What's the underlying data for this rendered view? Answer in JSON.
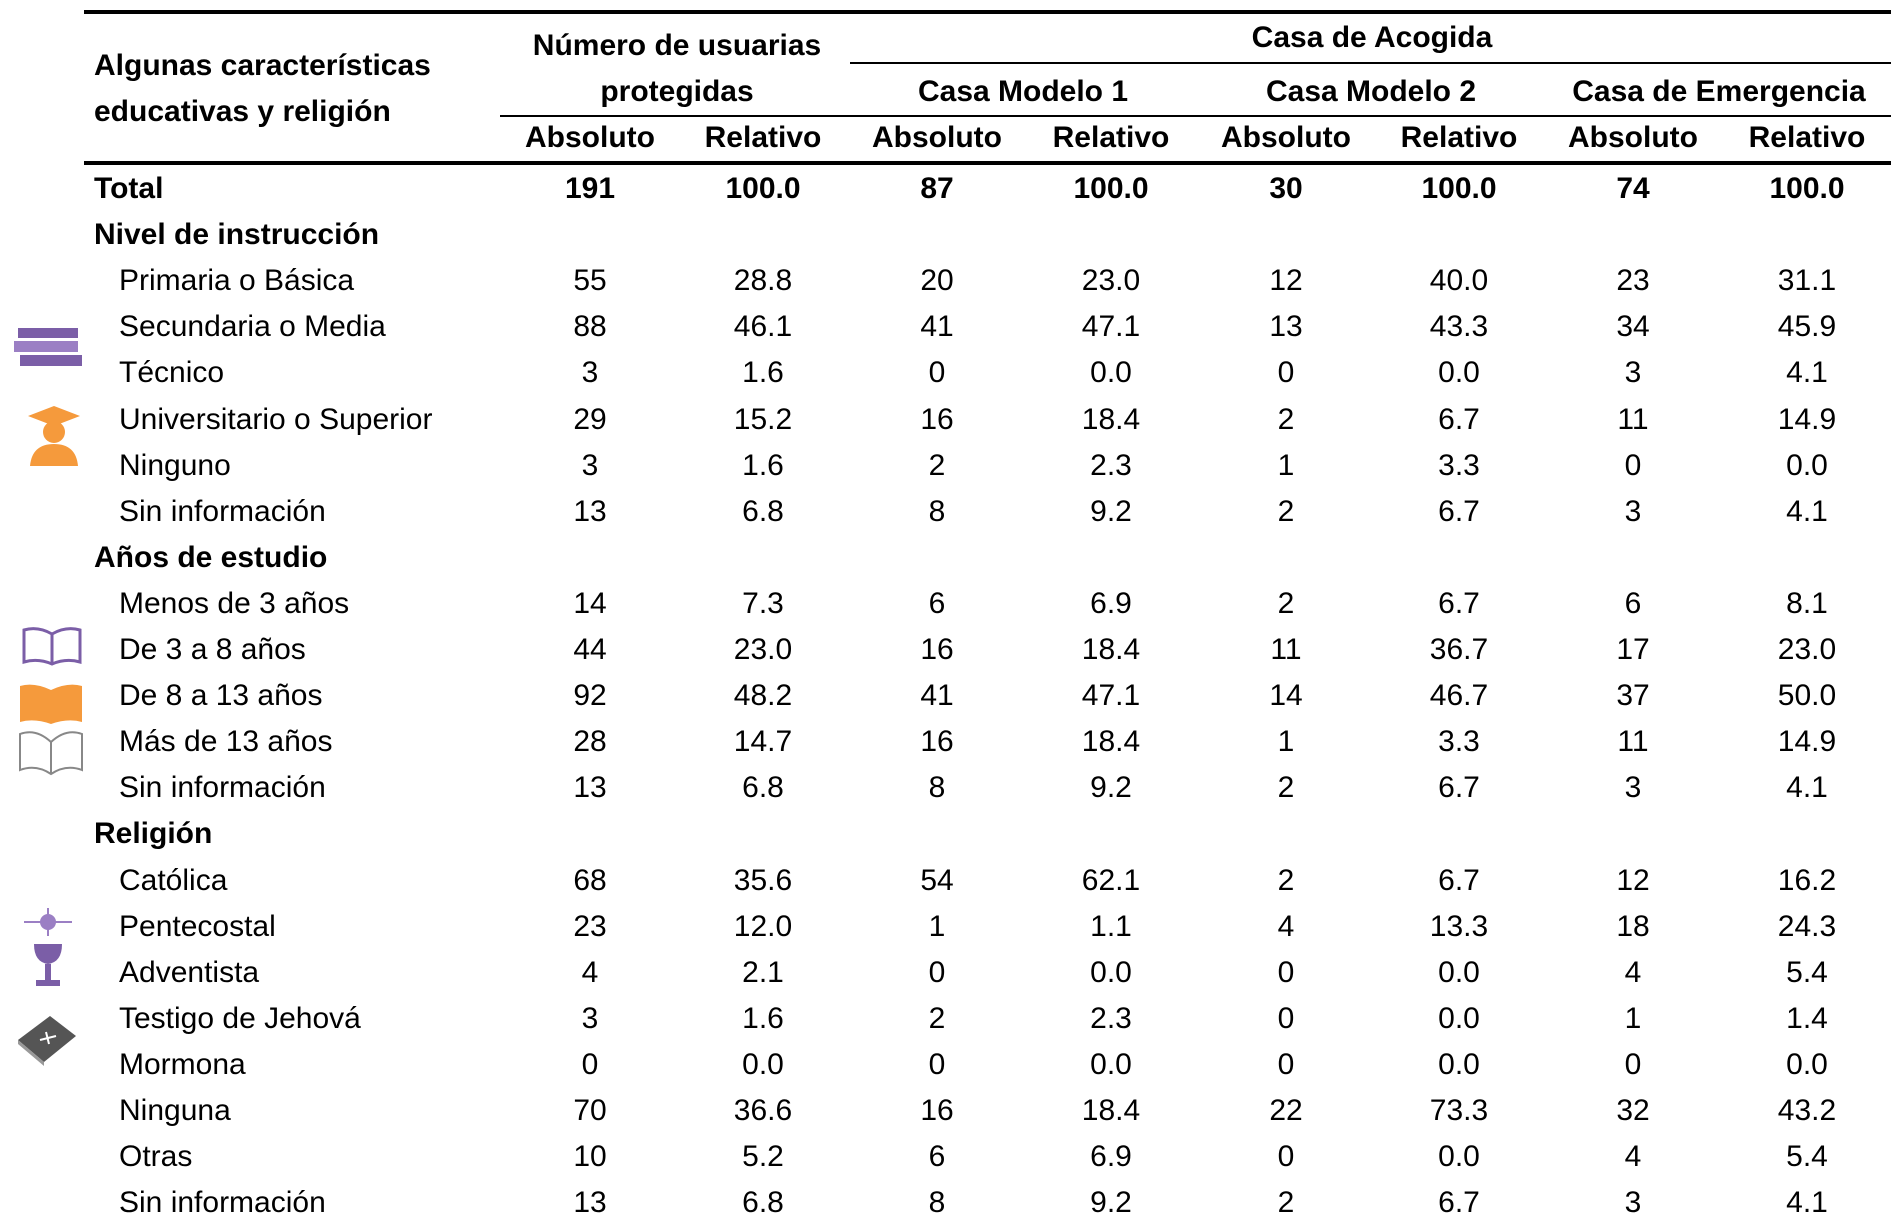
{
  "header": {
    "title": "Algunas características educativas y religión",
    "count_title": "Número de usuarias protegidas",
    "group_title": "Casa de Acogida",
    "models": [
      "Casa Modelo 1",
      "Casa Modelo 2",
      "Casa de Emergencia"
    ],
    "subheaders": [
      "Absoluto",
      "Relativo",
      "Absoluto",
      "Relativo",
      "Absoluto",
      "Relativo",
      "Absoluto",
      "Relativo"
    ]
  },
  "total": {
    "label": "Total",
    "values": [
      "191",
      "100.0",
      "87",
      "100.0",
      "30",
      "100.0",
      "74",
      "100.0"
    ]
  },
  "sections": [
    {
      "title": "Nivel de instrucción",
      "rows": [
        {
          "label": "Primaria o Básica",
          "values": [
            "55",
            "28.8",
            "20",
            "23.0",
            "12",
            "40.0",
            "23",
            "31.1"
          ]
        },
        {
          "label": "Secundaria o Media",
          "values": [
            "88",
            "46.1",
            "41",
            "47.1",
            "13",
            "43.3",
            "34",
            "45.9"
          ]
        },
        {
          "label": "Técnico",
          "values": [
            "3",
            "1.6",
            "0",
            "0.0",
            "0",
            "0.0",
            "3",
            "4.1"
          ]
        },
        {
          "label": "Universitario o Superior",
          "values": [
            "29",
            "15.2",
            "16",
            "18.4",
            "2",
            "6.7",
            "11",
            "14.9"
          ]
        },
        {
          "label": "Ninguno",
          "values": [
            "3",
            "1.6",
            "2",
            "2.3",
            "1",
            "3.3",
            "0",
            "0.0"
          ]
        },
        {
          "label": "Sin información",
          "values": [
            "13",
            "6.8",
            "8",
            "9.2",
            "2",
            "6.7",
            "3",
            "4.1"
          ]
        }
      ]
    },
    {
      "title": "Años de estudio",
      "rows": [
        {
          "label": "Menos de 3 años",
          "values": [
            "14",
            "7.3",
            "6",
            "6.9",
            "2",
            "6.7",
            "6",
            "8.1"
          ]
        },
        {
          "label": "De 3 a 8 años",
          "values": [
            "44",
            "23.0",
            "16",
            "18.4",
            "11",
            "36.7",
            "17",
            "23.0"
          ]
        },
        {
          "label": "De 8 a 13 años",
          "values": [
            "92",
            "48.2",
            "41",
            "47.1",
            "14",
            "46.7",
            "37",
            "50.0"
          ]
        },
        {
          "label": "Más de 13 años",
          "values": [
            "28",
            "14.7",
            "16",
            "18.4",
            "1",
            "3.3",
            "11",
            "14.9"
          ]
        },
        {
          "label": "Sin información",
          "values": [
            "13",
            "6.8",
            "8",
            "9.2",
            "2",
            "6.7",
            "3",
            "4.1"
          ]
        }
      ]
    },
    {
      "title": "Religión",
      "rows": [
        {
          "label": "Católica",
          "values": [
            "68",
            "35.6",
            "54",
            "62.1",
            "2",
            "6.7",
            "12",
            "16.2"
          ]
        },
        {
          "label": "Pentecostal",
          "values": [
            "23",
            "12.0",
            "1",
            "1.1",
            "4",
            "13.3",
            "18",
            "24.3"
          ]
        },
        {
          "label": "Adventista",
          "values": [
            "4",
            "2.1",
            "0",
            "0.0",
            "0",
            "0.0",
            "4",
            "5.4"
          ]
        },
        {
          "label": "Testigo de Jehová",
          "values": [
            "3",
            "1.6",
            "2",
            "2.3",
            "0",
            "0.0",
            "1",
            "1.4"
          ]
        },
        {
          "label": "Mormona",
          "values": [
            "0",
            "0.0",
            "0",
            "0.0",
            "0",
            "0.0",
            "0",
            "0.0"
          ]
        },
        {
          "label": "Ninguna",
          "values": [
            "70",
            "36.6",
            "16",
            "18.4",
            "22",
            "73.3",
            "32",
            "43.2"
          ]
        },
        {
          "label": "Otras",
          "values": [
            "10",
            "5.2",
            "6",
            "6.9",
            "0",
            "0.0",
            "4",
            "5.4"
          ]
        },
        {
          "label": "Sin información",
          "values": [
            "13",
            "6.8",
            "8",
            "9.2",
            "2",
            "6.7",
            "3",
            "4.1"
          ]
        }
      ]
    }
  ]
}
